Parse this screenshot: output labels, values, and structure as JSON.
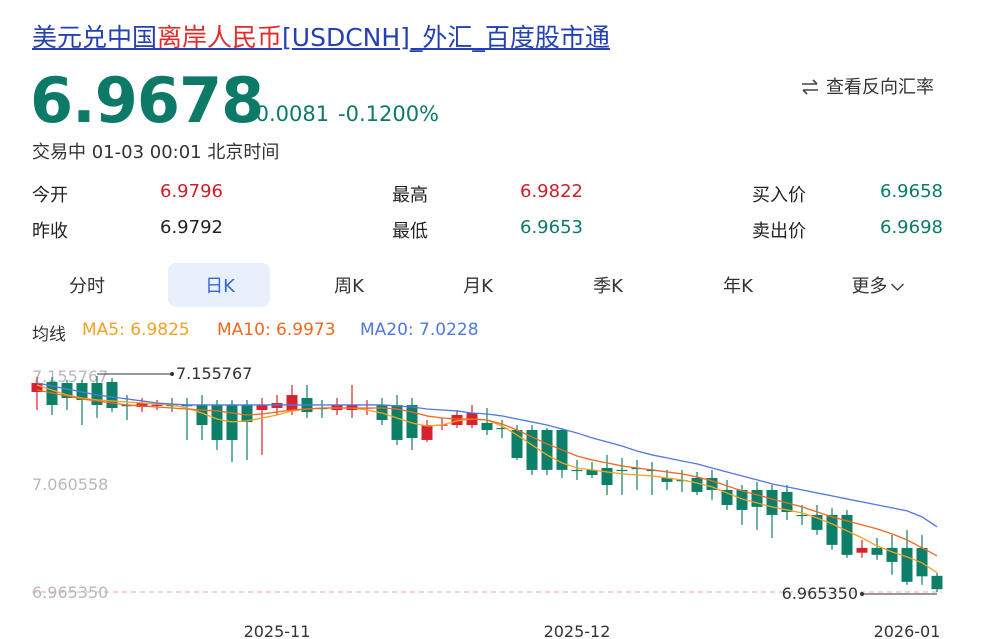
{
  "header": {
    "title_parts": [
      "美元兑中国",
      "离岸人民币",
      "[USDCNH]_外汇_百度股市通"
    ],
    "price": 6.9678,
    "change": -0.0081,
    "change_pct": "-0.1200%",
    "status": "交易中 01-03 00:01 北京时间",
    "reverse": "查看反向汇率"
  },
  "stats": [
    [
      "今开",
      6.9796
    ],
    [
      "最高",
      6.9822
    ],
    [
      "买入价",
      6.9658
    ],
    [
      "昨收",
      6.9792
    ],
    [
      "最低",
      6.9653
    ],
    [
      "卖出价",
      6.9698
    ]
  ],
  "tabs": [
    "分时",
    "日K",
    "周K",
    "月K",
    "季K",
    "年K",
    "更多"
  ],
  "ma_title": "均线",
  "chart_data": {
    "type": "candlestick",
    "up_color": "#d5232f",
    "down_color": "#0b7f68",
    "categories": [
      null,
      null,
      null,
      null,
      null,
      null,
      null,
      null,
      null,
      null,
      null,
      null,
      null,
      null,
      null,
      null,
      "2025-11",
      null,
      null,
      null,
      null,
      null,
      null,
      null,
      null,
      null,
      null,
      null,
      null,
      null,
      null,
      null,
      null,
      null,
      null,
      null,
      "2025-12",
      null,
      null,
      null,
      null,
      null,
      null,
      null,
      null,
      null,
      null,
      null,
      null,
      null,
      null,
      null,
      null,
      null,
      null,
      null,
      null,
      null,
      "2026-01",
      null,
      null
    ],
    "open": [
      7.1417,
      7.1505,
      7.1496,
      7.1496,
      7.1496,
      7.1505,
      7.1302,
      7.1285,
      7.1302,
      7.1302,
      7.1302,
      7.1302,
      7.1302,
      7.1302,
      7.1302,
      7.1258,
      7.1276,
      7.1258,
      7.1364,
      7.1276,
      7.1258,
      7.1258,
      7.1276,
      7.1302,
      7.1302,
      7.1302,
      7.0994,
      7.1126,
      7.1126,
      7.1126,
      7.1144,
      7.11,
      7.1082,
      7.1082,
      7.1082,
      7.1082,
      7.073,
      7.073,
      7.0747,
      7.073,
      7.0747,
      7.073,
      7.0659,
      7.0641,
      7.0659,
      7.0659,
      7.0553,
      7.0553,
      7.0553,
      7.0553,
      7.0536,
      7.0333,
      7.0333,
      7.0333,
      7.0333,
      7.0,
      7.0042,
      7.0042,
      7.0042,
      7.0042,
      6.9796
    ],
    "high": [
      7.155,
      7.1548,
      7.1523,
      7.1523,
      7.155767,
      7.154,
      7.139,
      7.1364,
      7.1346,
      7.1364,
      7.1364,
      7.139,
      7.1346,
      7.1346,
      7.1346,
      7.1364,
      7.139,
      7.1479,
      7.1479,
      7.1346,
      7.1364,
      7.1479,
      7.1346,
      7.1364,
      7.139,
      7.1364,
      7.117,
      7.1188,
      7.1258,
      7.1302,
      7.1276,
      7.117,
      7.1126,
      7.1126,
      7.11,
      7.11,
      7.0818,
      7.08,
      7.0862,
      7.0835,
      7.0818,
      7.08,
      7.073,
      7.073,
      7.0712,
      7.073,
      7.0641,
      7.0597,
      7.0624,
      7.0597,
      7.0597,
      7.0421,
      7.0421,
      7.0395,
      7.0377,
      7.0113,
      7.013,
      7.0157,
      7.0201,
      7.0157,
      6.9822
    ],
    "low": [
      7.1258,
      7.1214,
      7.1258,
      7.1126,
      7.1188,
      7.124,
      7.117,
      7.124,
      7.1258,
      7.124,
      7.0994,
      7.0994,
      7.0906,
      7.08,
      7.0818,
      7.0862,
      7.1214,
      7.1214,
      7.1188,
      7.1188,
      7.1214,
      7.1188,
      7.1214,
      7.1126,
      7.095,
      7.0906,
      7.0977,
      7.1082,
      7.11,
      7.11,
      7.1038,
      7.1011,
      7.0818,
      7.0685,
      7.0685,
      7.0659,
      7.0641,
      7.0659,
      7.0509,
      7.0509,
      7.0553,
      7.0509,
      7.0553,
      7.0536,
      7.0509,
      7.0465,
      7.0377,
      7.0245,
      7.0201,
      7.013,
      7.0289,
      7.0245,
      7.0157,
      7.0025,
      6.9955,
      6.9955,
      6.9937,
      6.9805,
      6.9717,
      6.9717,
      6.96535
    ],
    "close": [
      7.1496,
      7.1302,
      7.1364,
      7.1346,
      7.1302,
      7.1276,
      7.1294,
      7.132,
      7.1305,
      7.1298,
      7.1294,
      7.1126,
      7.0994,
      7.0994,
      7.1152,
      7.1302,
      7.132,
      7.139,
      7.124,
      7.127,
      7.1302,
      7.1302,
      7.128,
      7.117,
      7.0994,
      7.1011,
      7.1126,
      7.113,
      7.1214,
      7.1232,
      7.1082,
      7.1095,
      7.0835,
      7.073,
      7.073,
      7.073,
      7.0725,
      7.0685,
      7.0597,
      7.0727,
      7.0743,
      7.0726,
      7.0624,
      7.0638,
      7.0536,
      7.0553,
      7.0421,
      7.0377,
      7.0404,
      7.0333,
      7.0359,
      7.0328,
      7.0201,
      7.0069,
      6.9981,
      7.0042,
      6.9981,
      6.9919,
      6.9743,
      6.9792,
      6.9678
    ],
    "lines": [
      {
        "name": "MA5: 6.9825",
        "color": "#f4a125",
        "values": [
          7.1479,
          7.1435,
          7.1391,
          7.1364,
          7.1347,
          7.1338,
          7.1329,
          7.132,
          7.1311,
          7.1303,
          7.1276,
          7.1232,
          7.1179,
          7.1153,
          7.1162,
          7.1188,
          7.1214,
          7.125,
          7.1267,
          7.1276,
          7.1276,
          7.1276,
          7.1258,
          7.1232,
          7.1188,
          7.1144,
          7.1117,
          7.1126,
          7.1162,
          7.1179,
          7.117,
          7.1117,
          7.1038,
          7.095,
          7.0862,
          7.0792,
          7.0747,
          7.073,
          7.0712,
          7.0695,
          7.0686,
          7.0677,
          7.0659,
          7.0642,
          7.0615,
          7.058,
          7.0527,
          7.0474,
          7.0439,
          7.0404,
          7.0377,
          7.0351,
          7.0307,
          7.0254,
          7.0192,
          7.0131,
          7.006,
          7.0007,
          6.9963,
          6.9911,
          6.9825
        ]
      },
      {
        "name": "MA10: 6.9973",
        "color": "#ee6a1f",
        "values": [
          7.1435,
          7.1408,
          7.1382,
          7.1355,
          7.1338,
          7.132,
          7.1303,
          7.1294,
          7.1285,
          7.1276,
          7.1267,
          7.1258,
          7.125,
          7.1232,
          7.1214,
          7.1223,
          7.1241,
          7.1258,
          7.1267,
          7.1276,
          7.1276,
          7.1276,
          7.1276,
          7.1276,
          7.1267,
          7.1241,
          7.1206,
          7.1188,
          7.1179,
          7.1179,
          7.117,
          7.1135,
          7.1082,
          7.1021,
          7.0959,
          7.0906,
          7.0853,
          7.0818,
          7.0792,
          7.0765,
          7.0747,
          7.073,
          7.0712,
          7.0695,
          7.0668,
          7.0633,
          7.0589,
          7.0545,
          7.051,
          7.0474,
          7.0439,
          7.0404,
          7.036,
          7.0316,
          7.0281,
          7.0245,
          7.021,
          7.0166,
          7.0113,
          7.0043,
          6.9973
        ]
      },
      {
        "name": "MA20: 7.0228",
        "color": "#5078e2",
        "values": [
          7.1496,
          7.147,
          7.1443,
          7.1417,
          7.1391,
          7.1373,
          7.1355,
          7.1338,
          7.132,
          7.1311,
          7.1303,
          7.1303,
          7.1303,
          7.1303,
          7.1303,
          7.1303,
          7.1303,
          7.1303,
          7.1303,
          7.1303,
          7.1303,
          7.1303,
          7.1303,
          7.1303,
          7.1294,
          7.1285,
          7.1267,
          7.1258,
          7.125,
          7.1232,
          7.1223,
          7.1206,
          7.1179,
          7.1153,
          7.1126,
          7.1091,
          7.1056,
          7.1012,
          7.0977,
          7.0941,
          7.0897,
          7.0862,
          7.0836,
          7.0809,
          7.0783,
          7.0747,
          7.0712,
          7.0677,
          7.0642,
          7.0607,
          7.058,
          7.0554,
          7.0527,
          7.0501,
          7.0474,
          7.0448,
          7.0422,
          7.0395,
          7.0369,
          7.0316,
          7.0228
        ]
      }
    ],
    "ylim": [
      6.9583,
      7.1655
    ],
    "yticks": [
      {
        "value": 6.96535,
        "label": "6.965350"
      },
      7.060558,
      7.155767
    ],
    "grid": false,
    "annotations": [
      {
        "value": 7.155767,
        "label": "7.155767"
      },
      {
        "value": 6.96535,
        "label": "6.965350"
      }
    ]
  }
}
